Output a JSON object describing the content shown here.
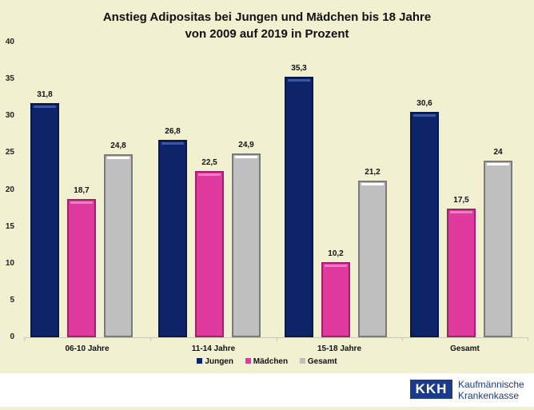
{
  "chart_data": {
    "type": "bar",
    "title": "Anstieg Adipositas bei Jungen und Mädchen bis 18 Jahre von 2009 auf 2019 in Prozent",
    "title_lines": [
      "Anstieg Adipositas bei Jungen und Mädchen bis 18 Jahre",
      "von 2009 auf 2019 in Prozent"
    ],
    "categories": [
      "06-10 Jahre",
      "11-14 Jahre",
      "15-18 Jahre",
      "Gesamt"
    ],
    "series": [
      {
        "name": "Jungen",
        "color": "#0e2468",
        "values": [
          31.8,
          26.8,
          35.3,
          30.6
        ],
        "labels": [
          "31,8",
          "26,8",
          "35,3",
          "30,6"
        ]
      },
      {
        "name": "Mädchen",
        "color": "#e03a9e",
        "values": [
          18.7,
          22.5,
          10.2,
          17.5
        ],
        "labels": [
          "18,7",
          "22,5",
          "10,2",
          "17,5"
        ]
      },
      {
        "name": "Gesamt",
        "color": "#bfbfbf",
        "values": [
          24.8,
          24.9,
          21.2,
          24.0
        ],
        "labels": [
          "24,8",
          "24,9",
          "21,2",
          "24"
        ]
      }
    ],
    "xlabel": "",
    "ylabel": "",
    "ylim": [
      0,
      40
    ],
    "yticks": [
      "0",
      "5",
      "10",
      "15",
      "20",
      "25",
      "30",
      "35",
      "40"
    ],
    "grid": false,
    "legend_position": "bottom"
  },
  "logo": {
    "abbr": "KKH",
    "line1": "Kaufmännische",
    "line2": "Krankenkasse"
  }
}
